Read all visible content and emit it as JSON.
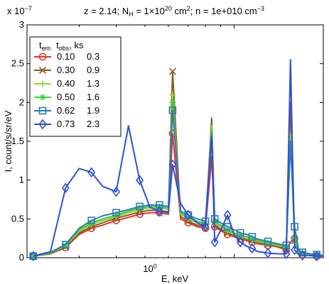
{
  "chart_data": {
    "type": "line",
    "title": {
      "main": "z = 2.14; N",
      "nh_sub": "H",
      "nh_val": " = 1×10",
      "nh_exp": "20",
      "nh_unit": " cm",
      "nh_unit_exp": "2",
      "n_part": "; n = 1e+010 cm",
      "n_exp": "−3"
    },
    "y_multiplier": {
      "base": "x 10",
      "exp": "−7"
    },
    "xlabel": "E, keV",
    "ylabel": "I, count/s/sr/eV",
    "x_scale": "log",
    "xlim": [
      0.2,
      2.0
    ],
    "ylim": [
      0,
      3
    ],
    "y_ticks": [
      "0",
      "0.5",
      "1",
      "1.5",
      "2",
      "2.5",
      "3"
    ],
    "x_tick_base": "10",
    "x_tick_exp": "0",
    "legend": {
      "placement": "top-left",
      "header": {
        "t1": "t",
        "t1_sub": "em",
        "t2": "t",
        "t2_sub": "obs",
        "unit": ", ks"
      },
      "entries": [
        {
          "em": "0.10",
          "obs": "0.3"
        },
        {
          "em": "0.30",
          "obs": "0.9"
        },
        {
          "em": "0.40",
          "obs": "1.3"
        },
        {
          "em": "0.50",
          "obs": "1.6"
        },
        {
          "em": "0.62",
          "obs": "1.9"
        },
        {
          "em": "0.73",
          "obs": "2.3"
        }
      ]
    },
    "series": [
      {
        "color": "#e8312a",
        "marker": "circle",
        "x": [
          0.21,
          0.24,
          0.27,
          0.3,
          0.33,
          0.36,
          0.4,
          0.44,
          0.48,
          0.52,
          0.56,
          0.6,
          0.62,
          0.66,
          0.7,
          0.75,
          0.8,
          0.84,
          0.86,
          0.9,
          0.95,
          1.0,
          1.05,
          1.1,
          1.15,
          1.2,
          1.3,
          1.4,
          1.5,
          1.55,
          1.6,
          1.65,
          1.7,
          1.8,
          1.9,
          2.0
        ],
        "y": [
          0.02,
          0.05,
          0.13,
          0.3,
          0.38,
          0.42,
          0.48,
          0.52,
          0.56,
          0.58,
          0.58,
          0.56,
          1.6,
          0.5,
          0.45,
          0.4,
          0.38,
          1.3,
          0.4,
          0.35,
          0.3,
          0.27,
          0.24,
          0.22,
          0.2,
          0.18,
          0.16,
          0.14,
          0.1,
          0.2,
          0.25,
          0.05,
          0.04,
          0.03,
          0.02,
          0.02
        ]
      },
      {
        "color": "#8a5a20",
        "marker": "x",
        "x": [
          0.21,
          0.24,
          0.27,
          0.3,
          0.33,
          0.36,
          0.4,
          0.44,
          0.48,
          0.52,
          0.56,
          0.6,
          0.62,
          0.66,
          0.7,
          0.75,
          0.8,
          0.84,
          0.86,
          0.9,
          0.95,
          1.0,
          1.05,
          1.1,
          1.15,
          1.2,
          1.3,
          1.4,
          1.5,
          1.55,
          1.6,
          1.65,
          1.7,
          1.8,
          1.9,
          2.0
        ],
        "y": [
          0.02,
          0.05,
          0.14,
          0.32,
          0.4,
          0.45,
          0.51,
          0.55,
          0.59,
          0.61,
          0.61,
          0.59,
          2.4,
          0.53,
          0.47,
          0.42,
          0.4,
          1.8,
          0.42,
          0.37,
          0.32,
          0.29,
          0.26,
          0.24,
          0.22,
          0.2,
          0.17,
          0.15,
          0.12,
          2.0,
          0.22,
          0.06,
          0.05,
          0.04,
          0.03,
          0.02
        ]
      },
      {
        "color": "#8ed33a",
        "marker": "plus",
        "x": [
          0.21,
          0.24,
          0.27,
          0.3,
          0.33,
          0.36,
          0.4,
          0.44,
          0.48,
          0.52,
          0.56,
          0.6,
          0.62,
          0.66,
          0.7,
          0.75,
          0.8,
          0.84,
          0.86,
          0.9,
          0.95,
          1.0,
          1.05,
          1.1,
          1.15,
          1.2,
          1.3,
          1.4,
          1.5,
          1.55,
          1.6,
          1.65,
          1.7,
          1.8,
          1.9,
          2.0
        ],
        "y": [
          0.02,
          0.06,
          0.15,
          0.34,
          0.43,
          0.48,
          0.53,
          0.58,
          0.62,
          0.64,
          0.64,
          0.62,
          2.1,
          0.56,
          0.5,
          0.45,
          0.42,
          1.7,
          0.45,
          0.4,
          0.34,
          0.3,
          0.27,
          0.25,
          0.23,
          0.21,
          0.18,
          0.16,
          0.13,
          1.6,
          0.24,
          0.07,
          0.05,
          0.04,
          0.03,
          0.02
        ]
      },
      {
        "color": "#3cd13c",
        "marker": "star",
        "x": [
          0.21,
          0.24,
          0.27,
          0.3,
          0.33,
          0.36,
          0.4,
          0.44,
          0.48,
          0.52,
          0.56,
          0.6,
          0.62,
          0.66,
          0.7,
          0.75,
          0.8,
          0.84,
          0.86,
          0.9,
          0.95,
          1.0,
          1.05,
          1.1,
          1.15,
          1.2,
          1.3,
          1.4,
          1.5,
          1.55,
          1.6,
          1.65,
          1.7,
          1.8,
          1.9,
          2.0
        ],
        "y": [
          0.02,
          0.06,
          0.16,
          0.36,
          0.45,
          0.5,
          0.55,
          0.6,
          0.64,
          0.66,
          0.66,
          0.64,
          2.0,
          0.58,
          0.52,
          0.47,
          0.44,
          1.65,
          0.47,
          0.42,
          0.36,
          0.32,
          0.29,
          0.27,
          0.25,
          0.22,
          0.19,
          0.17,
          0.14,
          1.5,
          0.26,
          0.08,
          0.06,
          0.05,
          0.03,
          0.02
        ]
      },
      {
        "color": "#2e7ab8",
        "marker": "square",
        "x": [
          0.21,
          0.24,
          0.27,
          0.3,
          0.33,
          0.36,
          0.4,
          0.44,
          0.48,
          0.52,
          0.56,
          0.6,
          0.62,
          0.66,
          0.7,
          0.75,
          0.8,
          0.84,
          0.86,
          0.9,
          0.95,
          1.0,
          1.05,
          1.1,
          1.15,
          1.2,
          1.3,
          1.4,
          1.5,
          1.55,
          1.6,
          1.65,
          1.7,
          1.8,
          1.9,
          2.0
        ],
        "y": [
          0.02,
          0.07,
          0.17,
          0.38,
          0.48,
          0.54,
          0.58,
          0.62,
          0.66,
          0.68,
          0.68,
          0.66,
          1.9,
          0.6,
          0.55,
          0.5,
          0.47,
          1.6,
          0.5,
          0.45,
          0.4,
          0.36,
          0.32,
          0.3,
          0.27,
          0.24,
          0.21,
          0.18,
          0.16,
          1.5,
          0.4,
          0.1,
          0.07,
          0.05,
          0.04,
          0.03
        ]
      },
      {
        "color": "#2f4fd6",
        "marker": "diamond",
        "x": [
          0.21,
          0.24,
          0.27,
          0.3,
          0.33,
          0.36,
          0.4,
          0.44,
          0.48,
          0.52,
          0.56,
          0.6,
          0.62,
          0.66,
          0.7,
          0.75,
          0.8,
          0.84,
          0.86,
          0.9,
          0.95,
          1.0,
          1.05,
          1.1,
          1.15,
          1.2,
          1.3,
          1.4,
          1.5,
          1.55,
          1.6,
          1.65,
          1.7,
          1.8,
          1.9,
          2.0
        ],
        "y": [
          0.02,
          0.08,
          0.9,
          1.15,
          1.1,
          0.92,
          0.85,
          1.7,
          1.0,
          0.65,
          0.6,
          0.58,
          1.2,
          0.7,
          0.55,
          0.45,
          0.4,
          1.55,
          0.2,
          0.35,
          0.55,
          0.3,
          0.2,
          0.15,
          0.12,
          0.08,
          0.06,
          0.05,
          0.05,
          2.55,
          0.1,
          0.04,
          0.03,
          0.03,
          0.02,
          0.02
        ]
      }
    ]
  }
}
